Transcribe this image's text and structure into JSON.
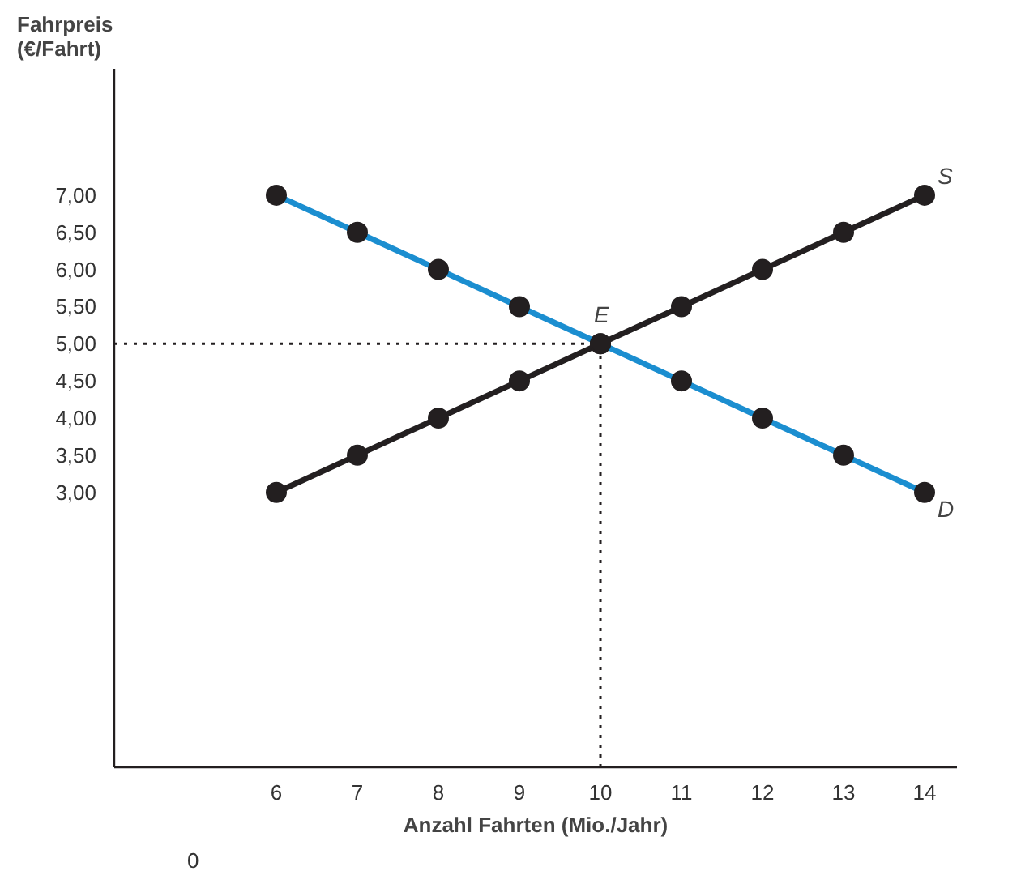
{
  "chart_data": {
    "type": "line",
    "ylabel": "Fahrpreis\n(€/Fahrt)",
    "xlabel": "Anzahl Fahrten (Mio./Jahr)",
    "x": [
      6,
      7,
      8,
      9,
      10,
      11,
      12,
      13,
      14
    ],
    "series": [
      {
        "name": "D",
        "color": "#1b8ed0",
        "values": [
          7.0,
          6.5,
          6.0,
          5.5,
          5.0,
          4.5,
          4.0,
          3.5,
          3.0
        ]
      },
      {
        "name": "S",
        "color": "#231f20",
        "values": [
          3.0,
          3.5,
          4.0,
          4.5,
          5.0,
          5.5,
          6.0,
          6.5,
          7.0
        ]
      }
    ],
    "xlim": [
      4.0,
      14.4
    ],
    "ylim": [
      -0.7,
      8.7
    ],
    "xticks": [
      6,
      7,
      8,
      9,
      10,
      11,
      12,
      13,
      14
    ],
    "yticks": [
      {
        "value": 3,
        "label": "3,00"
      },
      {
        "value": 3.5,
        "label": "3,50"
      },
      {
        "value": 4,
        "label": "4,00"
      },
      {
        "value": 4.5,
        "label": "4,50"
      },
      {
        "value": 5,
        "label": "5,00"
      },
      {
        "value": 5.5,
        "label": "5,50"
      },
      {
        "value": 6,
        "label": "6,00"
      },
      {
        "value": 6.5,
        "label": "6,50"
      },
      {
        "value": 7,
        "label": "7,00"
      }
    ],
    "annotations": [
      {
        "text": "E",
        "x": 10,
        "y": 5
      },
      "0"
    ],
    "ref_lines": [
      {
        "axis": "y",
        "value": 5,
        "line_style": "dotted"
      },
      {
        "axis": "x",
        "value": 10,
        "line_style": "dotted"
      }
    ],
    "marker": "circle",
    "line_style": "solid",
    "grid": false
  }
}
